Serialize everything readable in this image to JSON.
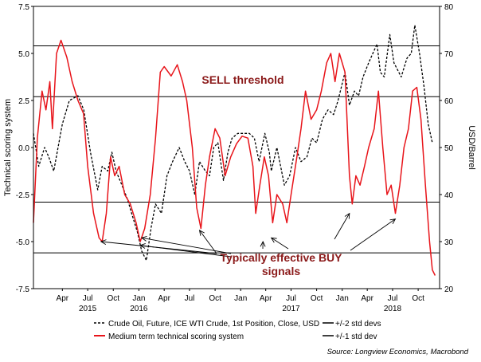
{
  "chart_data": {
    "type": "line",
    "y_axis_left": {
      "label": "Technical scoring system",
      "range": [
        -7.5,
        7.5
      ],
      "ticks": [
        7.5,
        5.0,
        2.5,
        0.0,
        -2.5,
        -5.0,
        -7.5
      ],
      "tick_labels": [
        "7.5",
        "5.0",
        "2.5",
        "0.0",
        "-2.5",
        "-5.0",
        "-7.5"
      ]
    },
    "y_axis_right": {
      "label": "USD/Barrel",
      "range": [
        20,
        80
      ],
      "ticks": [
        80,
        70,
        60,
        50,
        40,
        30,
        20
      ],
      "tick_labels": [
        "80",
        "70",
        "60",
        "50",
        "40",
        "30",
        "20"
      ]
    },
    "x_axis": {
      "range": [
        "2015-01-01",
        "2018-12-31"
      ],
      "month_labels": [
        {
          "label": "Apr",
          "date": "2015-04-15"
        },
        {
          "label": "Jul",
          "date": "2015-07-15"
        },
        {
          "label": "Oct",
          "date": "2015-10-15"
        },
        {
          "label": "Jan",
          "date": "2016-01-15"
        },
        {
          "label": "Apr",
          "date": "2016-04-15"
        },
        {
          "label": "Jul",
          "date": "2016-07-15"
        },
        {
          "label": "Oct",
          "date": "2016-10-15"
        },
        {
          "label": "Jan",
          "date": "2017-01-15"
        },
        {
          "label": "Apr",
          "date": "2017-04-15"
        },
        {
          "label": "Jul",
          "date": "2017-07-15"
        },
        {
          "label": "Oct",
          "date": "2017-10-15"
        },
        {
          "label": "Jan",
          "date": "2018-01-15"
        },
        {
          "label": "Apr",
          "date": "2018-04-15"
        },
        {
          "label": "Jul",
          "date": "2018-07-15"
        },
        {
          "label": "Oct",
          "date": "2018-10-15"
        }
      ],
      "year_labels": [
        {
          "label": "2015",
          "date": "2015-07-15"
        },
        {
          "label": "2016",
          "date": "2016-01-15"
        },
        {
          "label": "2017",
          "date": "2017-07-15"
        },
        {
          "label": "2018",
          "date": "2018-07-15"
        }
      ]
    },
    "reference_lines": [
      {
        "name": "+/-2 std devs",
        "values": [
          5.4,
          -5.6
        ],
        "color": "#000000"
      },
      {
        "name": "+/-1 std dev",
        "values": [
          2.7,
          -2.9
        ],
        "color": "#000000"
      }
    ],
    "series": [
      {
        "name": "Crude Oil, Future, ICE WTI Crude, 1st Position, Close, USD",
        "axis": "right",
        "style": "dashed",
        "color": "#000000",
        "points": [
          [
            "2015-01-01",
            53
          ],
          [
            "2015-01-20",
            46
          ],
          [
            "2015-02-10",
            50
          ],
          [
            "2015-02-25",
            48
          ],
          [
            "2015-03-15",
            45
          ],
          [
            "2015-04-15",
            55
          ],
          [
            "2015-05-10",
            60
          ],
          [
            "2015-06-10",
            61
          ],
          [
            "2015-07-01",
            58
          ],
          [
            "2015-07-25",
            49
          ],
          [
            "2015-08-20",
            41
          ],
          [
            "2015-09-05",
            46
          ],
          [
            "2015-09-25",
            45
          ],
          [
            "2015-10-10",
            49
          ],
          [
            "2015-10-25",
            45
          ],
          [
            "2015-11-15",
            42
          ],
          [
            "2015-12-05",
            39
          ],
          [
            "2015-12-20",
            36
          ],
          [
            "2016-01-10",
            32
          ],
          [
            "2016-01-25",
            28
          ],
          [
            "2016-02-11",
            26
          ],
          [
            "2016-02-28",
            33
          ],
          [
            "2016-03-15",
            38
          ],
          [
            "2016-04-05",
            36
          ],
          [
            "2016-04-25",
            44
          ],
          [
            "2016-05-15",
            47
          ],
          [
            "2016-06-08",
            50
          ],
          [
            "2016-06-28",
            47
          ],
          [
            "2016-07-15",
            45
          ],
          [
            "2016-08-03",
            40
          ],
          [
            "2016-08-20",
            47
          ],
          [
            "2016-09-10",
            45
          ],
          [
            "2016-09-25",
            44
          ],
          [
            "2016-10-10",
            50
          ],
          [
            "2016-10-25",
            51
          ],
          [
            "2016-11-14",
            43
          ],
          [
            "2016-11-30",
            49
          ],
          [
            "2016-12-15",
            52
          ],
          [
            "2017-01-05",
            53
          ],
          [
            "2017-02-15",
            53
          ],
          [
            "2017-03-05",
            52
          ],
          [
            "2017-03-22",
            47
          ],
          [
            "2017-04-12",
            53
          ],
          [
            "2017-04-28",
            49
          ],
          [
            "2017-05-05",
            45
          ],
          [
            "2017-05-25",
            50
          ],
          [
            "2017-06-21",
            42
          ],
          [
            "2017-07-10",
            44
          ],
          [
            "2017-07-31",
            50
          ],
          [
            "2017-08-20",
            47
          ],
          [
            "2017-09-10",
            48
          ],
          [
            "2017-09-28",
            52
          ],
          [
            "2017-10-15",
            51
          ],
          [
            "2017-11-05",
            56
          ],
          [
            "2017-11-25",
            58
          ],
          [
            "2017-12-15",
            57
          ],
          [
            "2017-12-31",
            60
          ],
          [
            "2018-01-25",
            66
          ],
          [
            "2018-02-10",
            59
          ],
          [
            "2018-02-28",
            62
          ],
          [
            "2018-03-15",
            61
          ],
          [
            "2018-03-31",
            65
          ],
          [
            "2018-04-20",
            68
          ],
          [
            "2018-05-20",
            72
          ],
          [
            "2018-06-01",
            66
          ],
          [
            "2018-06-15",
            65
          ],
          [
            "2018-07-05",
            74
          ],
          [
            "2018-07-20",
            68
          ],
          [
            "2018-08-15",
            65
          ],
          [
            "2018-09-05",
            69
          ],
          [
            "2018-09-20",
            70
          ],
          [
            "2018-10-03",
            76
          ],
          [
            "2018-10-20",
            70
          ],
          [
            "2018-11-05",
            63
          ],
          [
            "2018-11-20",
            55
          ],
          [
            "2018-12-05",
            51
          ]
        ]
      },
      {
        "name": "Medium term technical scoring system",
        "axis": "left",
        "style": "solid",
        "color": "#e8141a",
        "points": [
          [
            "2015-01-01",
            -4.0
          ],
          [
            "2015-01-15",
            0.5
          ],
          [
            "2015-02-01",
            3.0
          ],
          [
            "2015-02-15",
            2.0
          ],
          [
            "2015-03-01",
            3.5
          ],
          [
            "2015-03-10",
            1.0
          ],
          [
            "2015-03-25",
            5.0
          ],
          [
            "2015-04-10",
            5.7
          ],
          [
            "2015-05-01",
            4.8
          ],
          [
            "2015-05-20",
            3.5
          ],
          [
            "2015-06-10",
            2.5
          ],
          [
            "2015-06-30",
            1.8
          ],
          [
            "2015-07-15",
            -1.0
          ],
          [
            "2015-08-05",
            -3.5
          ],
          [
            "2015-08-25",
            -4.8
          ],
          [
            "2015-09-05",
            -5.0
          ],
          [
            "2015-09-20",
            -3.5
          ],
          [
            "2015-10-05",
            -0.5
          ],
          [
            "2015-10-20",
            -1.5
          ],
          [
            "2015-11-05",
            -1.0
          ],
          [
            "2015-11-25",
            -2.5
          ],
          [
            "2015-12-15",
            -3.0
          ],
          [
            "2016-01-05",
            -4.0
          ],
          [
            "2016-01-20",
            -5.0
          ],
          [
            "2016-02-05",
            -4.3
          ],
          [
            "2016-02-25",
            -2.5
          ],
          [
            "2016-03-15",
            0.5
          ],
          [
            "2016-04-01",
            4.0
          ],
          [
            "2016-04-15",
            4.3
          ],
          [
            "2016-05-10",
            3.8
          ],
          [
            "2016-06-01",
            4.4
          ],
          [
            "2016-06-20",
            3.5
          ],
          [
            "2016-07-05",
            2.5
          ],
          [
            "2016-07-25",
            0.0
          ],
          [
            "2016-08-10",
            -3.2
          ],
          [
            "2016-08-25",
            -4.3
          ],
          [
            "2016-09-10",
            -2.0
          ],
          [
            "2016-09-25",
            -0.5
          ],
          [
            "2016-10-15",
            1.0
          ],
          [
            "2016-11-01",
            0.5
          ],
          [
            "2016-11-20",
            -1.5
          ],
          [
            "2016-12-10",
            -0.5
          ],
          [
            "2016-12-31",
            0.2
          ],
          [
            "2017-01-20",
            0.6
          ],
          [
            "2017-02-10",
            0.5
          ],
          [
            "2017-02-28",
            -1.0
          ],
          [
            "2017-03-10",
            -3.5
          ],
          [
            "2017-03-25",
            -2.0
          ],
          [
            "2017-04-10",
            -0.5
          ],
          [
            "2017-04-25",
            -1.5
          ],
          [
            "2017-05-10",
            -4.0
          ],
          [
            "2017-05-25",
            -2.5
          ],
          [
            "2017-06-15",
            -3.0
          ],
          [
            "2017-06-30",
            -4.0
          ],
          [
            "2017-07-15",
            -2.5
          ],
          [
            "2017-08-05",
            -0.5
          ],
          [
            "2017-08-20",
            1.0
          ],
          [
            "2017-09-05",
            3.0
          ],
          [
            "2017-09-25",
            1.5
          ],
          [
            "2017-10-15",
            2.0
          ],
          [
            "2017-11-01",
            3.0
          ],
          [
            "2017-11-20",
            4.5
          ],
          [
            "2017-12-05",
            5.0
          ],
          [
            "2017-12-20",
            3.5
          ],
          [
            "2018-01-05",
            5.0
          ],
          [
            "2018-01-25",
            4.0
          ],
          [
            "2018-02-10",
            -1.5
          ],
          [
            "2018-02-20",
            -3.0
          ],
          [
            "2018-03-05",
            -1.5
          ],
          [
            "2018-03-20",
            -2.0
          ],
          [
            "2018-04-05",
            -1.0
          ],
          [
            "2018-04-20",
            0.0
          ],
          [
            "2018-05-10",
            1.0
          ],
          [
            "2018-05-25",
            3.0
          ],
          [
            "2018-06-10",
            0.0
          ],
          [
            "2018-06-25",
            -2.5
          ],
          [
            "2018-07-10",
            -2.0
          ],
          [
            "2018-07-25",
            -3.5
          ],
          [
            "2018-08-10",
            -2.0
          ],
          [
            "2018-08-25",
            0.0
          ],
          [
            "2018-09-10",
            1.0
          ],
          [
            "2018-09-25",
            3.0
          ],
          [
            "2018-10-10",
            3.2
          ],
          [
            "2018-10-25",
            1.5
          ],
          [
            "2018-11-10",
            -2.0
          ],
          [
            "2018-11-25",
            -5.0
          ],
          [
            "2018-12-05",
            -6.5
          ],
          [
            "2018-12-15",
            -6.8
          ]
        ]
      }
    ],
    "annotations": [
      {
        "text": "SELL threshold",
        "color": "#8b1a1a"
      },
      {
        "text": "Typically effective BUY",
        "color": "#8b1a1a"
      },
      {
        "text": "signals",
        "color": "#8b1a1a"
      }
    ],
    "buy_signal_arrow_targets": [
      [
        "2015-09-01",
        -5.0
      ],
      [
        "2016-01-25",
        -4.8
      ],
      [
        "2016-01-20",
        -5.2
      ],
      [
        "2016-08-20",
        -4.4
      ],
      [
        "2017-04-05",
        -5.0
      ],
      [
        "2017-05-05",
        -4.8
      ],
      [
        "2018-02-10",
        -3.5
      ],
      [
        "2018-07-25",
        -3.8
      ]
    ],
    "legend": {
      "position": "bottom",
      "entries": [
        {
          "label": "Crude Oil, Future, ICE WTI Crude, 1st Position, Close, USD",
          "style": "dashed",
          "color": "#000000"
        },
        {
          "label": "+/-2 std devs",
          "style": "solid",
          "color": "#000000"
        },
        {
          "label": "Medium term technical scoring system",
          "style": "solid",
          "color": "#e8141a"
        },
        {
          "label": "+/-1 std dev",
          "style": "solid",
          "color": "#000000"
        }
      ]
    },
    "source": "Source: Longview Economics, Macrobond"
  }
}
